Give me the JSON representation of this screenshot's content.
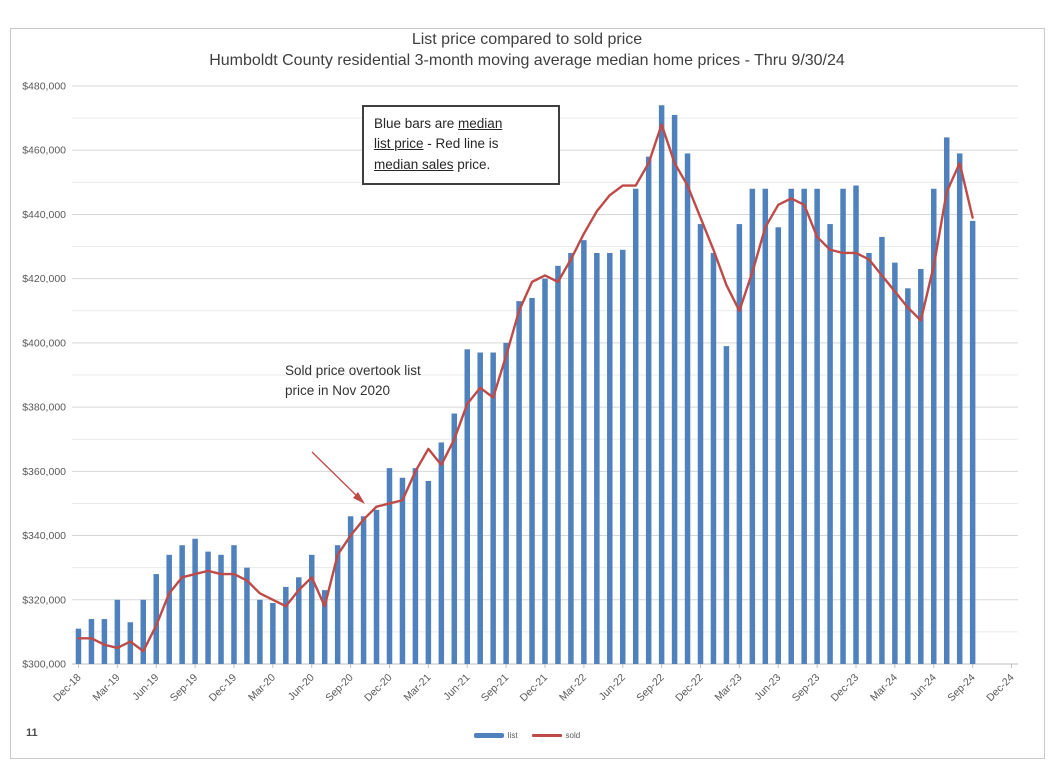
{
  "page": {
    "number": "11"
  },
  "chart_data": {
    "type": "bar",
    "title_line1": "List price compared to sold price",
    "title_line2": "Humboldt County residential 3-month moving average median home prices - Thru 9/30/24",
    "ylim": [
      300000,
      480000
    ],
    "y_major_step": 20000,
    "y_minor_step": 10000,
    "grid": "on",
    "legend_position": "bottom-center",
    "x_tick_labels": [
      "Dec-18",
      "Mar-19",
      "Jun-19",
      "Sep-19",
      "Dec-19",
      "Mar-20",
      "Jun-20",
      "Sep-20",
      "Dec-20",
      "Mar-21",
      "Jun-21",
      "Sep-21",
      "Dec-21",
      "Mar-22",
      "Jun-22",
      "Sep-22",
      "Dec-22",
      "Mar-23",
      "Jun-23",
      "Sep-23",
      "Dec-23",
      "Mar-24",
      "Jun-24",
      "Sep-24",
      "Dec-24"
    ],
    "x_axis_span_months": 73,
    "categories": [
      "Dec-18",
      "Jan-19",
      "Feb-19",
      "Mar-19",
      "Apr-19",
      "May-19",
      "Jun-19",
      "Jul-19",
      "Aug-19",
      "Sep-19",
      "Oct-19",
      "Nov-19",
      "Dec-19",
      "Jan-20",
      "Feb-20",
      "Mar-20",
      "Apr-20",
      "May-20",
      "Jun-20",
      "Jul-20",
      "Aug-20",
      "Sep-20",
      "Oct-20",
      "Nov-20",
      "Dec-20",
      "Jan-21",
      "Feb-21",
      "Mar-21",
      "Apr-21",
      "May-21",
      "Jun-21",
      "Jul-21",
      "Aug-21",
      "Sep-21",
      "Oct-21",
      "Nov-21",
      "Dec-21",
      "Jan-22",
      "Feb-22",
      "Mar-22",
      "Apr-22",
      "May-22",
      "Jun-22",
      "Jul-22",
      "Aug-22",
      "Sep-22",
      "Oct-22",
      "Nov-22",
      "Dec-22",
      "Jan-23",
      "Feb-23",
      "Mar-23",
      "Apr-23",
      "May-23",
      "Jun-23",
      "Jul-23",
      "Aug-23",
      "Sep-23",
      "Oct-23",
      "Nov-23",
      "Dec-23",
      "Jan-24",
      "Feb-24",
      "Mar-24",
      "Apr-24",
      "May-24",
      "Jun-24",
      "Jul-24",
      "Aug-24",
      "Sep-24"
    ],
    "series": [
      {
        "name": "list",
        "type": "bar",
        "color": "#4F81BD",
        "values": [
          311000,
          314000,
          314000,
          320000,
          313000,
          320000,
          328000,
          334000,
          337000,
          339000,
          335000,
          334000,
          337000,
          330000,
          320000,
          319000,
          324000,
          327000,
          334000,
          323000,
          337000,
          346000,
          346000,
          348000,
          361000,
          358000,
          361000,
          357000,
          369000,
          378000,
          398000,
          397000,
          397000,
          400000,
          413000,
          414000,
          420000,
          424000,
          428000,
          432000,
          428000,
          428000,
          429000,
          448000,
          458000,
          474000,
          471000,
          459000,
          437000,
          428000,
          399000,
          437000,
          448000,
          448000,
          436000,
          448000,
          448000,
          448000,
          437000,
          448000,
          449000,
          428000,
          433000,
          425000,
          417000,
          423000,
          448000,
          464000,
          459000,
          438000
        ]
      },
      {
        "name": "sold",
        "type": "line",
        "color": "#BE4B48",
        "values": [
          308000,
          308000,
          306000,
          305000,
          307000,
          304000,
          312000,
          322000,
          327000,
          328000,
          329000,
          328000,
          328000,
          326000,
          322000,
          320000,
          318000,
          323000,
          327000,
          318000,
          334000,
          340000,
          345000,
          349000,
          350000,
          351000,
          360000,
          367000,
          362000,
          370000,
          381000,
          386000,
          383000,
          396000,
          410000,
          419000,
          421000,
          419000,
          426000,
          434000,
          441000,
          446000,
          449000,
          449000,
          456000,
          468000,
          456000,
          449000,
          439000,
          429000,
          418000,
          410000,
          422000,
          436000,
          443000,
          445000,
          443000,
          433000,
          429000,
          428000,
          428000,
          426000,
          421000,
          416000,
          411000,
          407000,
          424000,
          447000,
          456000,
          439000
        ]
      }
    ],
    "annotations": {
      "callout_box_lines": [
        [
          {
            "text": "Blue bars are ",
            "u": false
          },
          {
            "text": "median",
            "u": true
          }
        ],
        [
          {
            "text": "list price",
            "u": true
          },
          {
            "text": " - Red line is",
            "u": false
          }
        ],
        [
          {
            "text": "median sales",
            "u": true
          },
          {
            "text": " price.",
            "u": false
          }
        ]
      ],
      "sold_note": {
        "line1": "Sold price overtook list",
        "line2": "price in Nov 2020"
      }
    }
  }
}
